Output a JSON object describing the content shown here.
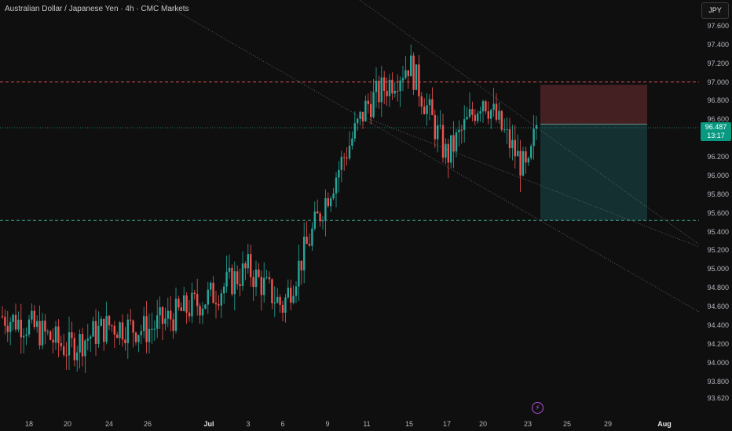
{
  "header": {
    "title": "Australian Dollar / Japanese Yen · 4h · CMC Markets"
  },
  "currency_button": {
    "label": "JPY"
  },
  "current_price": {
    "value": "96.487",
    "countdown": "13:17"
  },
  "price_axis": {
    "labels": [
      "97.600",
      "97.400",
      "97.200",
      "97.000",
      "96.800",
      "96.600",
      "96.400",
      "96.200",
      "96.000",
      "95.800",
      "95.600",
      "95.400",
      "95.200",
      "95.000",
      "94.800",
      "94.600",
      "94.400",
      "94.200",
      "94.000",
      "93.800",
      "93.620"
    ]
  },
  "time_axis": {
    "labels": [
      "18",
      "20",
      "24",
      "26",
      "Jul",
      "3",
      "6",
      "9",
      "11",
      "15",
      "17",
      "20",
      "23",
      "25",
      "29",
      "Aug"
    ]
  },
  "colors": {
    "up": "#26a69a",
    "down": "#ef5350",
    "stop_zone": "#4a2226",
    "target_zone": "#163334",
    "accent": "#089981"
  },
  "icons": {
    "alert": "lightning-icon"
  },
  "chart_data": {
    "type": "candlestick",
    "symbol": "AUDJPY",
    "timeframe": "4h",
    "ylim": [
      93.62,
      97.6
    ],
    "last_price": 96.487,
    "horizontal_levels": [
      97.0,
      95.52
    ],
    "trade_setup": {
      "direction": "short",
      "entry": 96.55,
      "stop": 96.97,
      "target": 95.52
    },
    "segments": [
      {
        "dates": [
          "Jun 17",
          "Jun 18",
          "Jun 20",
          "Jun 24",
          "Jun 26",
          "Jul 1"
        ],
        "closes": [
          94.4,
          94.3,
          94.1,
          94.4,
          94.3,
          94.7
        ]
      },
      {
        "dates": [
          "Jul 3",
          "Jul 6",
          "Jul 9",
          "Jul 11",
          "Jul 15",
          "Jul 17",
          "Jul 20",
          "Jul 23"
        ],
        "closes": [
          95.0,
          94.6,
          95.9,
          96.8,
          97.1,
          96.1,
          96.0,
          96.49
        ]
      }
    ]
  }
}
